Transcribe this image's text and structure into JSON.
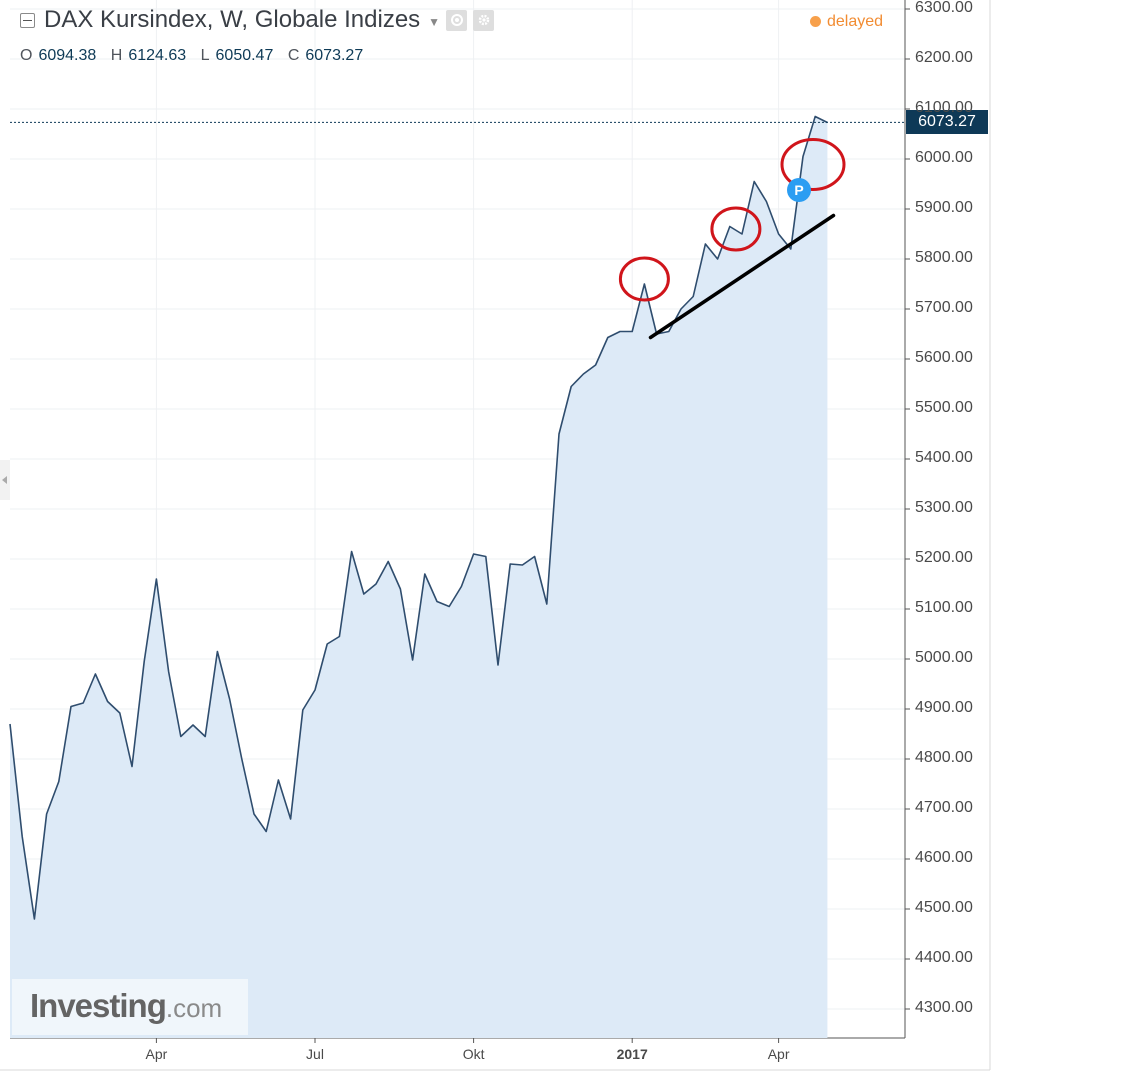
{
  "header": {
    "title": "DAX Kursindex, W, Globale Indizes",
    "status": "delayed",
    "ohlc": {
      "open_label": "O",
      "open": "6094.38",
      "high_label": "H",
      "high": "6124.63",
      "low_label": "L",
      "low": "6050.47",
      "close_label": "C",
      "close": "6073.27"
    }
  },
  "price_tag": "6073.27",
  "marker_badge": "P",
  "logo": {
    "brand": "Investing",
    "domain": ".com"
  },
  "icons": {
    "eye": "eye-icon",
    "settings": "gear-icon",
    "collapse": "collapse-icon",
    "dropdown": "caret-down-icon"
  },
  "colors": {
    "line": "#2f4d6e",
    "fill": "#ddeaf7",
    "annotation_circle": "#d0151b",
    "trend_line": "#000000",
    "price_tag_bg": "#0e3957",
    "delayed": "#f28c32",
    "marker": "#2b9df2"
  },
  "chart_data": {
    "type": "area",
    "title": "DAX Kursindex, W, Globale Indizes",
    "xlabel": "",
    "ylabel": "",
    "ylim": [
      4250,
      6300
    ],
    "yticks": [
      "4300.00",
      "4400.00",
      "4500.00",
      "4600.00",
      "4700.00",
      "4800.00",
      "4900.00",
      "5000.00",
      "5100.00",
      "5200.00",
      "5300.00",
      "5400.00",
      "5500.00",
      "5600.00",
      "5700.00",
      "5800.00",
      "5900.00",
      "6000.00",
      "6100.00",
      "6200.00",
      "6300.00"
    ],
    "x_tick_labels": [
      {
        "label": "Apr",
        "week": 12,
        "bold": false
      },
      {
        "label": "Jul",
        "week": 25,
        "bold": false
      },
      {
        "label": "Okt",
        "week": 38,
        "bold": false
      },
      {
        "label": "2017",
        "week": 51,
        "bold": true
      },
      {
        "label": "Apr",
        "week": 63,
        "bold": false
      }
    ],
    "series": [
      {
        "values": [
          4870,
          4645,
          4480,
          4690,
          4755,
          4905,
          4912,
          4970,
          4915,
          4892,
          4785,
          4995,
          5160,
          4975,
          4845,
          4868,
          4845,
          5015,
          4920,
          4800,
          4690,
          4655,
          4758,
          4680,
          4898,
          4938,
          5030,
          5045,
          5215,
          5130,
          5150,
          5195,
          5140,
          4998,
          5170,
          5115,
          5105,
          5145,
          5210,
          5205,
          4988,
          5190,
          5188,
          5205,
          5110,
          5450,
          5545,
          5570,
          5588,
          5643,
          5655,
          5655,
          5750,
          5650,
          5655,
          5700,
          5725,
          5830,
          5800,
          5865,
          5850,
          5955,
          5915,
          5850,
          5820,
          6005,
          6085,
          6073
        ]
      }
    ],
    "annotations": {
      "trend_line": {
        "from": {
          "week": 52.5,
          "price": 5643
        },
        "to": {
          "week": 67.5,
          "price": 5887
        }
      },
      "circled_peaks_weeks": [
        52,
        59.5,
        65
      ]
    },
    "last_price": 6073.27,
    "grid": true,
    "legend": "none"
  }
}
